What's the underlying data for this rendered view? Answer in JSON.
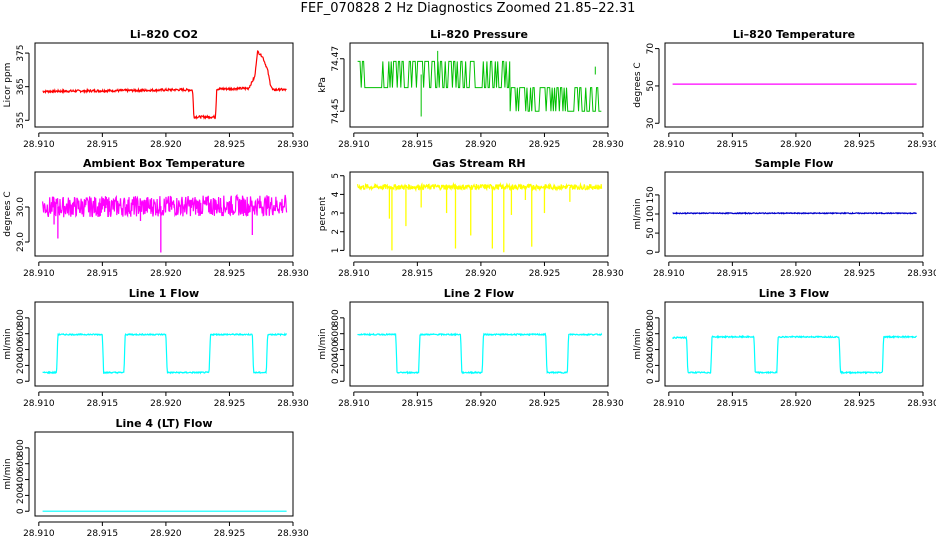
{
  "figure_title": "FEF_070828  2 Hz Diagnostics Zoomed 21.85–22.31",
  "chart_data": [
    {
      "id": "co2",
      "type": "line",
      "title": "Li–820 CO2",
      "ylabel": "Licor ppm",
      "color": "#ff0000",
      "xlim": [
        28.9097,
        28.93
      ],
      "ylim": [
        353,
        378
      ],
      "xticks": [
        "28.910",
        "28.915",
        "28.920",
        "28.925",
        "28.930"
      ],
      "yticks": [
        "355",
        "365",
        "375"
      ],
      "ytick_values": [
        355,
        365,
        375
      ],
      "series": [
        {
          "name": "CO2",
          "x": [
            28.9103,
            28.915,
            28.918,
            28.921,
            28.9221,
            28.9222,
            28.9239,
            28.924,
            28.9265,
            28.927,
            28.9272,
            28.9276,
            28.928,
            28.9282,
            28.9284,
            28.929,
            28.9295
          ],
          "values": [
            363.6,
            363.8,
            363.9,
            364.1,
            364.0,
            356.0,
            356.0,
            364.3,
            364.5,
            368.0,
            375.5,
            374.0,
            370.0,
            366.0,
            364.0,
            364.2,
            364.0
          ],
          "noise": 0.35
        }
      ]
    },
    {
      "id": "pressure",
      "type": "line",
      "title": "Li–820 Pressure",
      "ylabel": "kPa",
      "color": "#00c000",
      "xlim": [
        28.9097,
        28.93
      ],
      "ylim": [
        74.444,
        74.476
      ],
      "xticks": [
        "28.910",
        "28.915",
        "28.920",
        "28.925",
        "28.930"
      ],
      "yticks": [
        "74.45",
        "74.47"
      ],
      "ytick_values": [
        74.45,
        74.47
      ],
      "series": [
        {
          "name": "Pressure",
          "segments": [
            {
              "x": [
                28.9103,
                28.92
              ],
              "low": 74.459,
              "high": 74.469
            },
            {
              "x": [
                28.92,
                28.9223
              ],
              "low": 74.459,
              "high": 74.469
            },
            {
              "x": [
                28.9223,
                28.9295
              ],
              "low": 74.45,
              "high": 74.459
            }
          ],
          "spikes": [
            {
              "x": 28.9166,
              "value": 74.473
            },
            {
              "x": 28.9153,
              "value": 74.448
            },
            {
              "x": 28.929,
              "value": 74.467
            }
          ]
        }
      ]
    },
    {
      "id": "temperature",
      "type": "line",
      "title": "Li–820 Temperature",
      "ylabel": "degrees C",
      "color": "#ff00ff",
      "xlim": [
        28.9097,
        28.93
      ],
      "ylim": [
        28,
        73
      ],
      "xticks": [
        "28.910",
        "28.915",
        "28.920",
        "28.925",
        "28.930"
      ],
      "yticks": [
        "30",
        "50",
        "70"
      ],
      "ytick_values": [
        30,
        50,
        70
      ],
      "series": [
        {
          "name": "Temperature",
          "x": [
            28.9103,
            28.9295
          ],
          "values": [
            51,
            51
          ],
          "noise": 0
        }
      ]
    },
    {
      "id": "ambient",
      "type": "line",
      "title": "Ambient Box Temperature",
      "ylabel": "degrees C",
      "color": "#ff00ff",
      "xlim": [
        28.9097,
        28.93
      ],
      "ylim": [
        28.6,
        31.0
      ],
      "xticks": [
        "28.910",
        "28.915",
        "28.920",
        "28.925",
        "28.930"
      ],
      "yticks": [
        "29.0",
        "30.0"
      ],
      "ytick_values": [
        29.0,
        30.0
      ],
      "series": [
        {
          "name": "Ambient",
          "x": [
            28.9103,
            28.9295
          ],
          "values": [
            30.0,
            30.05
          ],
          "noise": 0.3,
          "spikes": [
            {
              "x": 28.9115,
              "value": 29.1
            },
            {
              "x": 28.9196,
              "value": 28.7
            },
            {
              "x": 28.9268,
              "value": 29.2
            },
            {
              "x": 28.9112,
              "value": 29.5
            },
            {
              "x": 28.918,
              "value": 29.6
            }
          ]
        }
      ]
    },
    {
      "id": "rh",
      "type": "line",
      "title": "Gas Stream RH",
      "ylabel": "percent",
      "color": "#ffff00",
      "xlim": [
        28.9097,
        28.93
      ],
      "ylim": [
        0.7,
        5.2
      ],
      "xticks": [
        "28.910",
        "28.915",
        "28.920",
        "28.925",
        "28.930"
      ],
      "yticks": [
        "1",
        "2",
        "3",
        "4",
        "5"
      ],
      "ytick_values": [
        1,
        2,
        3,
        4,
        5
      ],
      "series": [
        {
          "name": "RH",
          "x": [
            28.9103,
            28.9295
          ],
          "values": [
            4.4,
            4.4
          ],
          "noise": 0.15,
          "spikes": [
            {
              "x": 28.9128,
              "value": 2.7
            },
            {
              "x": 28.913,
              "value": 1.0
            },
            {
              "x": 28.9141,
              "value": 2.3
            },
            {
              "x": 28.9153,
              "value": 3.3
            },
            {
              "x": 28.9173,
              "value": 3.0
            },
            {
              "x": 28.918,
              "value": 1.1
            },
            {
              "x": 28.9192,
              "value": 1.8
            },
            {
              "x": 28.9209,
              "value": 1.1
            },
            {
              "x": 28.9218,
              "value": 0.9
            },
            {
              "x": 28.9224,
              "value": 2.9
            },
            {
              "x": 28.9235,
              "value": 3.7
            },
            {
              "x": 28.924,
              "value": 1.2
            },
            {
              "x": 28.925,
              "value": 3.0
            },
            {
              "x": 28.927,
              "value": 3.6
            }
          ]
        }
      ]
    },
    {
      "id": "sample",
      "type": "line",
      "title": "Sample Flow",
      "ylabel": "ml/min",
      "color": "#0000cc",
      "xlim": [
        28.9097,
        28.93
      ],
      "ylim": [
        -10,
        210
      ],
      "xticks": [
        "28.910",
        "28.915",
        "28.920",
        "28.925",
        "28.930"
      ],
      "yticks": [
        "0",
        "50",
        "100",
        "150"
      ],
      "ytick_values": [
        0,
        50,
        100,
        150
      ],
      "series": [
        {
          "name": "Sample",
          "x": [
            28.9103,
            28.9295
          ],
          "values": [
            102,
            102
          ],
          "noise": 1.2
        }
      ]
    },
    {
      "id": "line1",
      "type": "line",
      "title": "Line 1 Flow",
      "ylabel": "ml/min",
      "color": "#00ffff",
      "xlim": [
        28.9097,
        28.93
      ],
      "ylim": [
        -60,
        1000
      ],
      "xticks": [
        "28.910",
        "28.915",
        "28.920",
        "28.925",
        "28.930"
      ],
      "yticks": [
        "0",
        "200",
        "400",
        "600",
        "800"
      ],
      "ytick_values": [
        0,
        200,
        400,
        600,
        800
      ],
      "series": [
        {
          "name": "Line 1",
          "x": [
            28.9103,
            28.9114,
            28.9115,
            28.915,
            28.9151,
            28.9167,
            28.9168,
            28.92,
            28.9201,
            28.9234,
            28.9235,
            28.9268,
            28.9269,
            28.9279,
            28.928,
            28.9295
          ],
          "values": [
            110,
            110,
            590,
            590,
            110,
            110,
            590,
            590,
            110,
            110,
            590,
            590,
            110,
            110,
            590,
            590
          ],
          "noise": 8
        }
      ]
    },
    {
      "id": "line2",
      "type": "line",
      "title": "Line 2 Flow",
      "ylabel": "ml/min",
      "color": "#00ffff",
      "xlim": [
        28.9097,
        28.93
      ],
      "ylim": [
        -60,
        1000
      ],
      "xticks": [
        "28.910",
        "28.915",
        "28.920",
        "28.925",
        "28.930"
      ],
      "yticks": [
        "0",
        "200",
        "400",
        "600",
        "800"
      ],
      "ytick_values": [
        0,
        200,
        400,
        600,
        800
      ],
      "series": [
        {
          "name": "Line 2",
          "x": [
            28.9103,
            28.9133,
            28.9134,
            28.9151,
            28.9152,
            28.9184,
            28.9185,
            28.9201,
            28.9202,
            28.9251,
            28.9252,
            28.9268,
            28.9269,
            28.9295
          ],
          "values": [
            590,
            590,
            110,
            110,
            590,
            590,
            110,
            110,
            590,
            590,
            110,
            110,
            590,
            590
          ],
          "noise": 8
        }
      ]
    },
    {
      "id": "line3",
      "type": "line",
      "title": "Line 3 Flow",
      "ylabel": "ml/min",
      "color": "#00ffff",
      "xlim": [
        28.9097,
        28.93
      ],
      "ylim": [
        -60,
        1000
      ],
      "xticks": [
        "28.910",
        "28.915",
        "28.920",
        "28.925",
        "28.930"
      ],
      "yticks": [
        "0",
        "200",
        "400",
        "600",
        "800"
      ],
      "ytick_values": [
        0,
        200,
        400,
        600,
        800
      ],
      "series": [
        {
          "name": "Line 3",
          "x": [
            28.9103,
            28.9114,
            28.9115,
            28.9133,
            28.9134,
            28.9167,
            28.9168,
            28.9185,
            28.9186,
            28.9217,
            28.9218,
            28.9234,
            28.9235,
            28.9268,
            28.9269,
            28.9295
          ],
          "values": [
            550,
            550,
            110,
            110,
            560,
            560,
            110,
            110,
            560,
            560,
            560,
            560,
            110,
            110,
            560,
            560
          ],
          "noise": 8
        }
      ]
    },
    {
      "id": "line4",
      "type": "line",
      "title": "Line 4 (LT) Flow",
      "ylabel": "ml/min",
      "color": "#00ffff",
      "xlim": [
        28.9097,
        28.93
      ],
      "ylim": [
        -60,
        1000
      ],
      "xticks": [
        "28.910",
        "28.915",
        "28.920",
        "28.925",
        "28.930"
      ],
      "yticks": [
        "0",
        "200",
        "400",
        "600",
        "800"
      ],
      "ytick_values": [
        0,
        200,
        400,
        600,
        800
      ],
      "series": [
        {
          "name": "Line 4",
          "x": [
            28.9103,
            28.9295
          ],
          "values": [
            0,
            0
          ],
          "noise": 0
        }
      ]
    }
  ]
}
